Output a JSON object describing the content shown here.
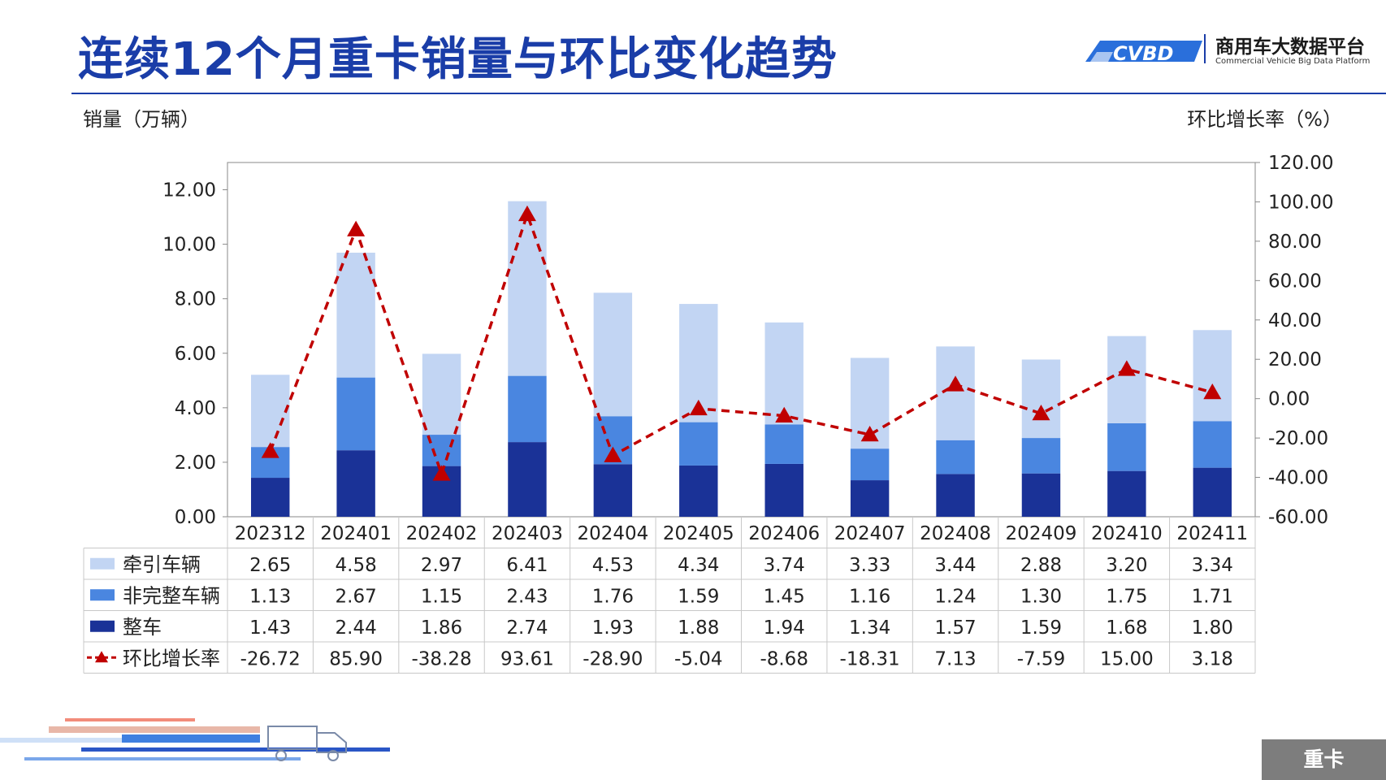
{
  "header": {
    "title": "连续12个月重卡销量与环比变化趋势",
    "logo_text": "商用车大数据平台",
    "logo_sub": "Commercial Vehicle Big Data Platform",
    "logo_mark": "CVBD"
  },
  "axis_labels": {
    "left": "销量（万辆）",
    "right": "环比增长率（%）"
  },
  "footer_tag": "重卡",
  "colors": {
    "title": "#1a3da8",
    "tractor": "#c2d5f3",
    "incomplete": "#4a86e0",
    "complete": "#1a3297",
    "mom_line": "#c00000"
  },
  "chart_data": {
    "type": "bar",
    "stacked": true,
    "categories": [
      "202312",
      "202401",
      "202402",
      "202403",
      "202404",
      "202405",
      "202406",
      "202407",
      "202408",
      "202409",
      "202410",
      "202411"
    ],
    "series": [
      {
        "name": "牵引车辆",
        "color": "#c2d5f3",
        "axis": "left",
        "values": [
          2.65,
          4.58,
          2.97,
          6.41,
          4.53,
          4.34,
          3.74,
          3.33,
          3.44,
          2.88,
          3.2,
          3.34
        ],
        "labels": [
          "2.65",
          "4.58",
          "2.97",
          "6.41",
          "4.53",
          "4.34",
          "3.74",
          "3.33",
          "3.44",
          "2.88",
          "3.20",
          "3.34"
        ]
      },
      {
        "name": "非完整车辆",
        "color": "#4a86e0",
        "axis": "left",
        "values": [
          1.13,
          2.67,
          1.15,
          2.43,
          1.76,
          1.59,
          1.45,
          1.16,
          1.24,
          1.3,
          1.75,
          1.71
        ],
        "labels": [
          "1.13",
          "2.67",
          "1.15",
          "2.43",
          "1.76",
          "1.59",
          "1.45",
          "1.16",
          "1.24",
          "1.30",
          "1.75",
          "1.71"
        ]
      },
      {
        "name": "整车",
        "color": "#1a3297",
        "axis": "left",
        "values": [
          1.43,
          2.44,
          1.86,
          2.74,
          1.93,
          1.88,
          1.94,
          1.34,
          1.57,
          1.59,
          1.68,
          1.8
        ],
        "labels": [
          "1.43",
          "2.44",
          "1.86",
          "2.74",
          "1.93",
          "1.88",
          "1.94",
          "1.34",
          "1.57",
          "1.59",
          "1.68",
          "1.80"
        ]
      },
      {
        "name": "环比增长率",
        "type": "line",
        "color": "#c00000",
        "axis": "right",
        "values": [
          -26.72,
          85.9,
          -38.28,
          93.61,
          -28.9,
          -5.04,
          -8.68,
          -18.31,
          7.13,
          -7.59,
          15.0,
          3.18
        ],
        "labels": [
          "-26.72",
          "85.90",
          "-38.28",
          "93.61",
          "-28.90",
          "-5.04",
          "-8.68",
          "-18.31",
          "7.13",
          "-7.59",
          "15.00",
          "3.18"
        ]
      }
    ],
    "ylim_left": [
      0,
      13
    ],
    "yticks_left": [
      "0.00",
      "2.00",
      "4.00",
      "6.00",
      "8.00",
      "10.00",
      "12.00"
    ],
    "ylim_right": [
      -60,
      120
    ],
    "yticks_right": [
      "-60.00",
      "-40.00",
      "-20.00",
      "0.00",
      "20.00",
      "40.00",
      "60.00",
      "80.00",
      "100.00",
      "120.00"
    ],
    "legend": "data-table",
    "grid": false
  }
}
